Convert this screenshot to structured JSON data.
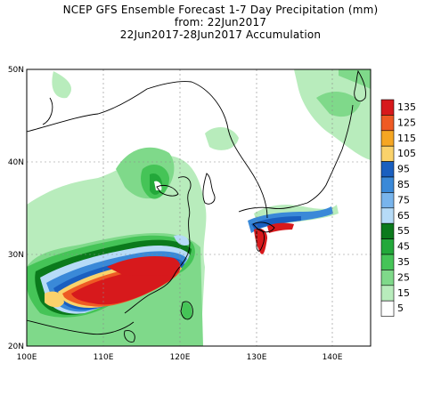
{
  "title": {
    "line1": "NCEP GFS Ensemble Forecast 1-7 Day Precipitation (mm)",
    "line2": "from: 22Jun2017",
    "line3": "22Jun2017-28Jun2017 Accumulation"
  },
  "axes": {
    "lon_labels": [
      "100E",
      "110E",
      "120E",
      "130E",
      "140E"
    ],
    "lat_labels": [
      "20N",
      "30N",
      "40N",
      "50N"
    ],
    "lon_range": [
      100,
      145
    ],
    "lat_range": [
      20,
      50
    ]
  },
  "legend": {
    "levels": [
      "135",
      "125",
      "115",
      "105",
      "95",
      "85",
      "75",
      "65",
      "55",
      "45",
      "35",
      "25",
      "15",
      "5"
    ],
    "colors": [
      "#d7191c",
      "#ee5a24",
      "#f5a623",
      "#fad26b",
      "#1a5fbf",
      "#3a89d8",
      "#78b4ec",
      "#b6dbf7",
      "#0b7a1c",
      "#23a83a",
      "#45c457",
      "#7fd98a",
      "#b8ecbc",
      "#ffffff"
    ]
  },
  "colors": {
    "land_line": "#000000",
    "grid": "#8a8a8a"
  }
}
